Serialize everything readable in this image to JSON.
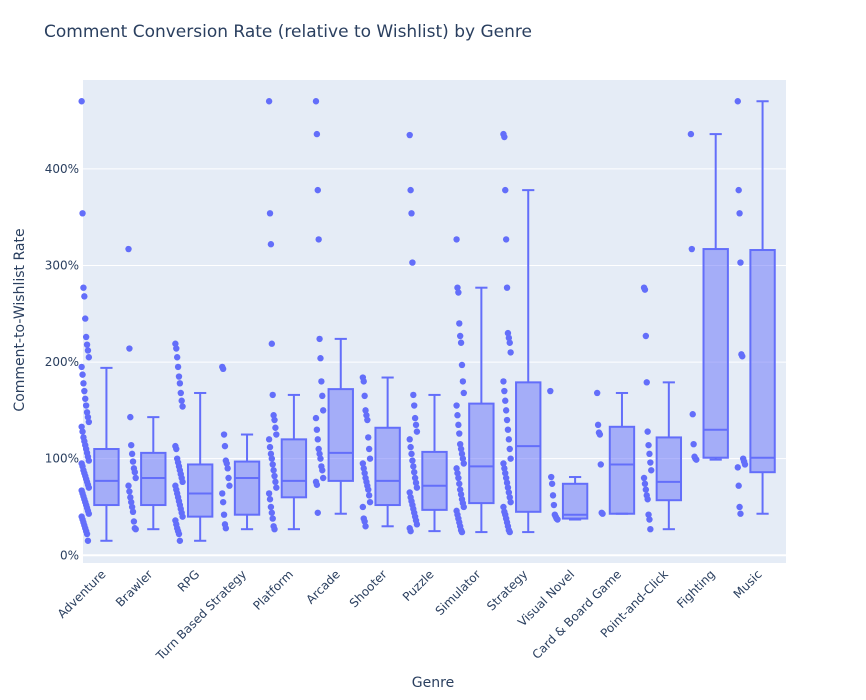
{
  "chart_data": {
    "type": "box",
    "title": "Comment Conversion Rate (relative to Wishlist) by Genre",
    "xlabel": "Genre",
    "ylabel": "Comment-to-Wishlist Rate",
    "ylim": [
      -0.08,
      4.92
    ],
    "y_ticks": [
      0,
      1,
      2,
      3,
      4
    ],
    "y_tick_labels": [
      "0%",
      "100%",
      "200%",
      "300%",
      "400%"
    ],
    "grid": true,
    "colors": {
      "fill": "rgba(99,110,250,0.5)",
      "line": "#636efa",
      "point": "#636efa",
      "plot_bg": "#e5ecf6",
      "grid": "#ffffff"
    },
    "categories": [
      "Adventure",
      "Brawler",
      "RPG",
      "Turn Based Strategy",
      "Platform",
      "Arcade",
      "Shooter",
      "Puzzle",
      "Simulator",
      "Strategy",
      "Visual Novel",
      "Card & Board Game",
      "Point-and-Click",
      "Fighting",
      "Music"
    ],
    "boxes": [
      {
        "genre": "Adventure",
        "min": 0.15,
        "q1": 0.52,
        "median": 0.77,
        "q3": 1.1,
        "max": 1.94,
        "points": [
          4.7,
          3.54,
          2.77,
          2.68,
          2.45,
          2.26,
          2.18,
          2.12,
          2.05,
          1.95,
          1.87,
          1.78,
          1.7,
          1.62,
          1.55,
          1.48,
          1.43,
          1.38,
          1.33,
          1.28,
          1.22,
          1.18,
          1.14,
          1.1,
          1.06,
          1.02,
          0.98,
          0.95,
          0.92,
          0.88,
          0.85,
          0.82,
          0.79,
          0.76,
          0.73,
          0.7,
          0.67,
          0.64,
          0.61,
          0.58,
          0.55,
          0.52,
          0.49,
          0.46,
          0.43,
          0.4,
          0.37,
          0.34,
          0.31,
          0.28,
          0.25,
          0.22,
          0.15
        ]
      },
      {
        "genre": "Brawler",
        "min": 0.27,
        "q1": 0.52,
        "median": 0.8,
        "q3": 1.06,
        "max": 1.43,
        "points": [
          3.17,
          2.14,
          1.43,
          1.14,
          1.05,
          0.97,
          0.9,
          0.86,
          0.8,
          0.72,
          0.66,
          0.6,
          0.55,
          0.5,
          0.45,
          0.35,
          0.28,
          0.27
        ]
      },
      {
        "genre": "RPG",
        "min": 0.15,
        "q1": 0.4,
        "median": 0.64,
        "q3": 0.94,
        "max": 1.68,
        "points": [
          2.19,
          2.14,
          2.05,
          1.95,
          1.85,
          1.78,
          1.68,
          1.6,
          1.54,
          1.13,
          1.1,
          1.0,
          0.96,
          0.92,
          0.88,
          0.84,
          0.8,
          0.76,
          0.72,
          0.68,
          0.64,
          0.6,
          0.56,
          0.52,
          0.48,
          0.44,
          0.4,
          0.36,
          0.32,
          0.28,
          0.25,
          0.22,
          0.15
        ]
      },
      {
        "genre": "Turn Based Strategy",
        "min": 0.27,
        "q1": 0.42,
        "median": 0.8,
        "q3": 0.97,
        "max": 1.25,
        "points": [
          1.95,
          1.93,
          1.25,
          1.13,
          0.98,
          0.95,
          0.9,
          0.8,
          0.72,
          0.64,
          0.55,
          0.42,
          0.32,
          0.28
        ]
      },
      {
        "genre": "Platform",
        "min": 0.27,
        "q1": 0.6,
        "median": 0.77,
        "q3": 1.2,
        "max": 1.66,
        "points": [
          4.7,
          3.54,
          3.22,
          2.19,
          1.66,
          1.45,
          1.4,
          1.32,
          1.25,
          1.2,
          1.12,
          1.05,
          1.0,
          0.94,
          0.88,
          0.82,
          0.76,
          0.7,
          0.64,
          0.58,
          0.5,
          0.44,
          0.38,
          0.3,
          0.27
        ]
      },
      {
        "genre": "Arcade",
        "min": 0.43,
        "q1": 0.77,
        "median": 1.06,
        "q3": 1.72,
        "max": 2.24,
        "points": [
          4.7,
          4.36,
          3.78,
          3.27,
          2.24,
          2.04,
          1.8,
          1.65,
          1.5,
          1.42,
          1.3,
          1.2,
          1.1,
          1.05,
          1.0,
          0.92,
          0.88,
          0.8,
          0.76,
          0.73,
          0.44
        ]
      },
      {
        "genre": "Shooter",
        "min": 0.3,
        "q1": 0.52,
        "median": 0.77,
        "q3": 1.32,
        "max": 1.84,
        "points": [
          1.84,
          1.8,
          1.65,
          1.5,
          1.45,
          1.4,
          1.22,
          1.1,
          1.0,
          0.95,
          0.9,
          0.85,
          0.8,
          0.76,
          0.72,
          0.68,
          0.62,
          0.55,
          0.5,
          0.38,
          0.35,
          0.3
        ]
      },
      {
        "genre": "Puzzle",
        "min": 0.25,
        "q1": 0.47,
        "median": 0.72,
        "q3": 1.07,
        "max": 1.66,
        "points": [
          4.35,
          3.78,
          3.54,
          3.03,
          1.66,
          1.55,
          1.42,
          1.35,
          1.28,
          1.2,
          1.12,
          1.05,
          0.98,
          0.92,
          0.86,
          0.8,
          0.75,
          0.7,
          0.65,
          0.6,
          0.56,
          0.52,
          0.48,
          0.44,
          0.4,
          0.36,
          0.32,
          0.28,
          0.25
        ]
      },
      {
        "genre": "Simulator",
        "min": 0.24,
        "q1": 0.54,
        "median": 0.92,
        "q3": 1.57,
        "max": 2.77,
        "points": [
          3.27,
          2.77,
          2.72,
          2.4,
          2.27,
          2.2,
          1.97,
          1.8,
          1.68,
          1.55,
          1.45,
          1.35,
          1.26,
          1.15,
          1.1,
          1.05,
          1.0,
          0.95,
          0.9,
          0.85,
          0.8,
          0.74,
          0.68,
          0.63,
          0.58,
          0.54,
          0.5,
          0.46,
          0.42,
          0.38,
          0.34,
          0.3,
          0.26,
          0.24
        ]
      },
      {
        "genre": "Strategy",
        "min": 0.24,
        "q1": 0.45,
        "median": 1.13,
        "q3": 1.79,
        "max": 3.78,
        "points": [
          4.36,
          4.33,
          3.78,
          3.27,
          2.77,
          2.3,
          2.25,
          2.2,
          2.1,
          1.8,
          1.7,
          1.6,
          1.5,
          1.4,
          1.3,
          1.2,
          1.1,
          1.0,
          0.95,
          0.9,
          0.85,
          0.8,
          0.75,
          0.7,
          0.65,
          0.6,
          0.55,
          0.5,
          0.45,
          0.42,
          0.38,
          0.34,
          0.3,
          0.26,
          0.24
        ]
      },
      {
        "genre": "Visual Novel",
        "min": 0.37,
        "q1": 0.38,
        "median": 0.42,
        "q3": 0.74,
        "max": 0.81,
        "points": [
          1.7,
          0.81,
          0.74,
          0.62,
          0.52,
          0.42,
          0.4,
          0.38,
          0.37
        ]
      },
      {
        "genre": "Card & Board Game",
        "min": 0.43,
        "q1": 0.43,
        "median": 0.94,
        "q3": 1.33,
        "max": 1.68,
        "points": [
          1.68,
          1.35,
          1.27,
          1.25,
          0.94,
          0.44,
          0.43
        ]
      },
      {
        "genre": "Point-and-Click",
        "min": 0.27,
        "q1": 0.57,
        "median": 0.76,
        "q3": 1.22,
        "max": 1.79,
        "points": [
          2.77,
          2.75,
          2.27,
          1.79,
          1.28,
          1.14,
          1.05,
          0.96,
          0.88,
          0.8,
          0.74,
          0.68,
          0.62,
          0.58,
          0.42,
          0.37,
          0.27
        ]
      },
      {
        "genre": "Fighting",
        "min": 0.99,
        "q1": 1.01,
        "median": 1.3,
        "q3": 3.17,
        "max": 4.36,
        "points": [
          4.36,
          3.17,
          1.46,
          1.15,
          1.02,
          1.0,
          0.99
        ]
      },
      {
        "genre": "Music",
        "min": 0.43,
        "q1": 0.86,
        "median": 1.01,
        "q3": 3.16,
        "max": 4.7,
        "points": [
          4.7,
          3.78,
          3.54,
          3.03,
          2.08,
          2.06,
          1.0,
          0.97,
          0.94,
          0.91,
          0.72,
          0.5,
          0.43
        ]
      }
    ]
  }
}
